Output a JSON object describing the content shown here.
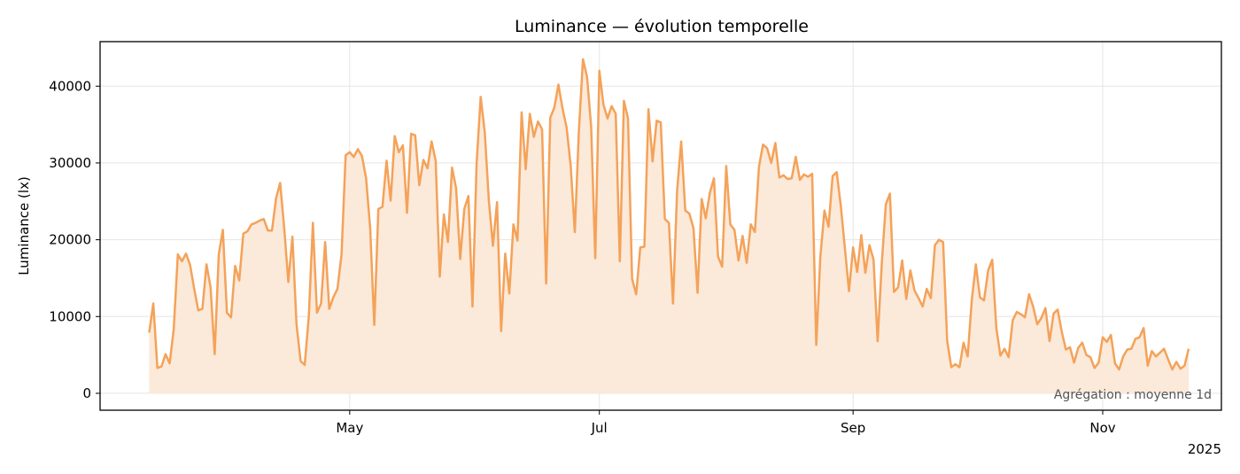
{
  "colors": {
    "line": "#f4a259",
    "fill": "#fbe9d9",
    "grid": "#e5e5e5",
    "axis": "#000000",
    "annotation": "#555555"
  },
  "chart_data": {
    "type": "area",
    "title": "Luminance — évolution temporelle",
    "xlabel": "",
    "ylabel": "Luminance (lx)",
    "x_axis": {
      "scale": "date",
      "range": [
        "2025-03-01",
        "2025-11-30"
      ],
      "ticks": [
        {
          "date": "2025-05-01",
          "label": "May"
        },
        {
          "date": "2025-07-01",
          "label": "Jul"
        },
        {
          "date": "2025-09-01",
          "label": "Sep"
        },
        {
          "date": "2025-11-01",
          "label": "Nov"
        }
      ],
      "offset_label": "2025"
    },
    "y_axis": {
      "range": [
        -2200,
        45800
      ],
      "ticks": [
        0,
        10000,
        20000,
        30000,
        40000
      ]
    },
    "grid": true,
    "annotation": "Agrégation : moyenne 1d",
    "series": [
      {
        "x_start": "2025-03-13",
        "x_step": "1 day",
        "values": [
          7900,
          11700,
          3300,
          3500,
          5100,
          3900,
          8400,
          18100,
          17200,
          18200,
          16700,
          13600,
          10800,
          11000,
          16800,
          13800,
          5100,
          18100,
          21300,
          10500,
          9900,
          16600,
          14700,
          20800,
          21100,
          22000,
          22200,
          22500,
          22700,
          21200,
          21200,
          25400,
          27400,
          21500,
          14500,
          20400,
          9000,
          4200,
          3700,
          10000,
          22200,
          10500,
          11700,
          19700,
          11000,
          12500,
          13600,
          18100,
          31000,
          31400,
          30800,
          31800,
          30900,
          28000,
          21500,
          8900,
          24000,
          24300,
          30300,
          25100,
          33500,
          31400,
          32300,
          23500,
          33800,
          33600,
          27100,
          30400,
          29300,
          32800,
          30300,
          15200,
          23300,
          19700,
          29400,
          26700,
          17500,
          24000,
          25700,
          11300,
          29900,
          38600,
          34000,
          25100,
          19200,
          24900,
          8100,
          18200,
          13000,
          22000,
          19900,
          36600,
          29200,
          36400,
          33400,
          35400,
          34400,
          14300,
          35900,
          37200,
          40200,
          37100,
          34600,
          29600,
          21000,
          34200,
          43500,
          41200,
          34700,
          17600,
          42000,
          37600,
          35800,
          37400,
          36400,
          17200,
          38100,
          35800,
          14900,
          12900,
          19000,
          19100,
          37000,
          30200,
          35500,
          35300,
          22700,
          22200,
          11700,
          26400,
          32800,
          23800,
          23400,
          21500,
          13100,
          25300,
          22800,
          26100,
          28000,
          17800,
          16500,
          29600,
          22000,
          21300,
          17300,
          20500,
          17000,
          22000,
          21000,
          29500,
          32400,
          31900,
          30000,
          32600,
          28100,
          28400,
          27900,
          28000,
          30800,
          27800,
          28500,
          28200,
          28600,
          6300,
          17800,
          23800,
          21700,
          28300,
          28800,
          24400,
          18900,
          13300,
          19000,
          15800,
          20600,
          15700,
          19300,
          17400,
          6800,
          16800,
          24600,
          26000,
          13200,
          13800,
          17300,
          12300,
          16000,
          13400,
          12400,
          11300,
          13600,
          12400,
          19300,
          20000,
          19700,
          6800,
          3400,
          3800,
          3400,
          6600,
          4800,
          12100,
          16800,
          12500,
          12100,
          16000,
          17400,
          8500,
          4900,
          5800,
          4700,
          9500,
          10600,
          10300,
          9900,
          12900,
          11300,
          9000,
          9800,
          11100,
          6800,
          10400,
          10900,
          8000,
          5700,
          6000,
          4000,
          5900,
          6600,
          5000,
          4700,
          3300,
          4000,
          7300,
          6700,
          7600,
          3900,
          3100,
          4800,
          5700,
          5800,
          7100,
          7300,
          8500,
          3600,
          5500,
          4800,
          5300,
          5800,
          4400,
          3100,
          4100,
          3200,
          3600,
          5800
        ]
      }
    ]
  }
}
